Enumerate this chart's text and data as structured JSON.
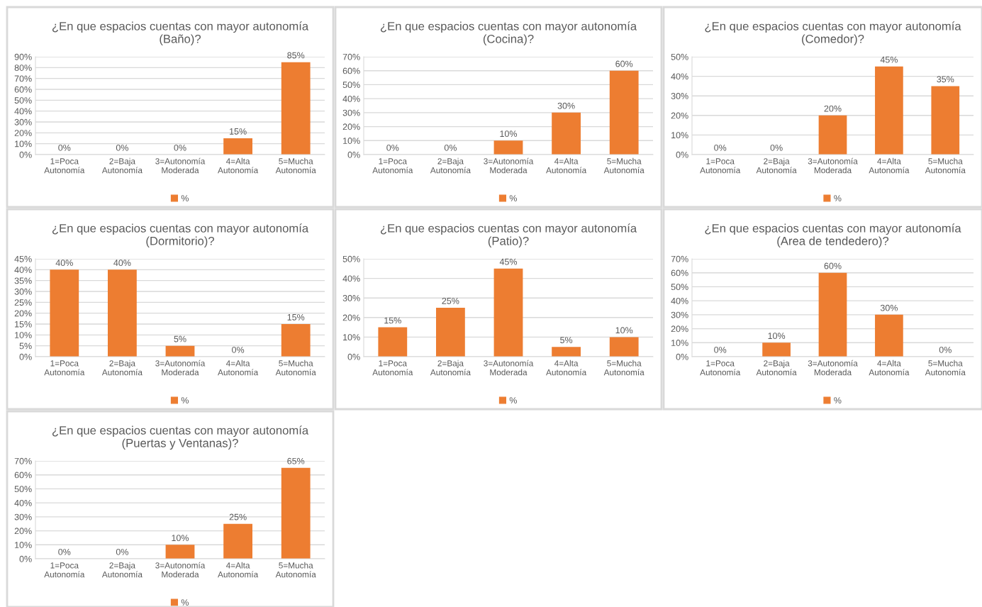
{
  "chart_data": [
    {
      "type": "bar",
      "title": "¿En que espacios cuentas con mayor autonomía\n(Baño)?",
      "categories": [
        "1=Poca\nAutonomía",
        "2=Baja\nAutonomía",
        "3=Autonomía\nModerada",
        "4=Alta\nAutonomía",
        "5=Mucha\nAutonomía"
      ],
      "series": [
        {
          "name": "%",
          "color": "#ed7d31",
          "values": [
            0,
            0,
            0,
            15,
            85
          ],
          "value_labels": [
            "0%",
            "0%",
            "0%",
            "15%",
            "85%"
          ]
        }
      ],
      "ylim": [
        0,
        90
      ],
      "yticks": [
        {
          "value": 0,
          "label": "0%"
        },
        {
          "value": 10,
          "label": "10%"
        },
        {
          "value": 20,
          "label": "20%"
        },
        {
          "value": 30,
          "label": "30%"
        },
        {
          "value": 40,
          "label": "40%"
        },
        {
          "value": 50,
          "label": "50%"
        },
        {
          "value": 60,
          "label": "60%"
        },
        {
          "value": 70,
          "label": "70%"
        },
        {
          "value": 80,
          "label": "80%"
        },
        {
          "value": 90,
          "label": "90%"
        }
      ],
      "grid": "y",
      "legend": "bottom"
    },
    {
      "type": "bar",
      "title": "¿En que espacios cuentas con mayor autonomía\n(Cocina)?",
      "categories": [
        "1=Poca\nAutonomía",
        "2=Baja\nAutonomía",
        "3=Autonomía\nModerada",
        "4=Alta\nAutonomía",
        "5=Mucha\nAutonomía"
      ],
      "series": [
        {
          "name": "%",
          "color": "#ed7d31",
          "values": [
            0,
            0,
            10,
            30,
            60
          ],
          "value_labels": [
            "0%",
            "0%",
            "10%",
            "30%",
            "60%"
          ]
        }
      ],
      "ylim": [
        0,
        70
      ],
      "yticks": [
        {
          "value": 0,
          "label": "0%"
        },
        {
          "value": 10,
          "label": "10%"
        },
        {
          "value": 20,
          "label": "20%"
        },
        {
          "value": 30,
          "label": "30%"
        },
        {
          "value": 40,
          "label": "40%"
        },
        {
          "value": 50,
          "label": "50%"
        },
        {
          "value": 60,
          "label": "60%"
        },
        {
          "value": 70,
          "label": "70%"
        }
      ],
      "grid": "y",
      "legend": "bottom"
    },
    {
      "type": "bar",
      "title": "¿En que espacios cuentas con mayor autonomía\n(Comedor)?",
      "categories": [
        "1=Poca\nAutonomía",
        "2=Baja\nAutonomía",
        "3=Autonomía\nModerada",
        "4=Alta\nAutonomía",
        "5=Mucha\nAutonomía"
      ],
      "series": [
        {
          "name": "%",
          "color": "#ed7d31",
          "values": [
            0,
            0,
            20,
            45,
            35
          ],
          "value_labels": [
            "0%",
            "0%",
            "20%",
            "45%",
            "35%"
          ]
        }
      ],
      "ylim": [
        0,
        50
      ],
      "yticks": [
        {
          "value": 0,
          "label": "0%"
        },
        {
          "value": 10,
          "label": "10%"
        },
        {
          "value": 20,
          "label": "20%"
        },
        {
          "value": 30,
          "label": "30%"
        },
        {
          "value": 40,
          "label": "40%"
        },
        {
          "value": 50,
          "label": "50%"
        }
      ],
      "grid": "y",
      "legend": "bottom"
    },
    {
      "type": "bar",
      "title": "¿En que espacios cuentas con mayor autonomía\n(Dormitorio)?",
      "categories": [
        "1=Poca\nAutonomía",
        "2=Baja\nAutonomía",
        "3=Autonomía\nModerada",
        "4=Alta\nAutonomía",
        "5=Mucha\nAutonomía"
      ],
      "series": [
        {
          "name": "%",
          "color": "#ed7d31",
          "values": [
            40,
            40,
            5,
            0,
            15
          ],
          "value_labels": [
            "40%",
            "40%",
            "5%",
            "0%",
            "15%"
          ]
        }
      ],
      "ylim": [
        0,
        45
      ],
      "yticks": [
        {
          "value": 0,
          "label": "0%"
        },
        {
          "value": 5,
          "label": "5%"
        },
        {
          "value": 10,
          "label": "10%"
        },
        {
          "value": 15,
          "label": "15%"
        },
        {
          "value": 20,
          "label": "20%"
        },
        {
          "value": 25,
          "label": "25%"
        },
        {
          "value": 30,
          "label": "30%"
        },
        {
          "value": 35,
          "label": "35%"
        },
        {
          "value": 40,
          "label": "40%"
        },
        {
          "value": 45,
          "label": "45%"
        }
      ],
      "grid": "y",
      "legend": "bottom"
    },
    {
      "type": "bar",
      "title": "¿En que espacios cuentas con mayor autonomía\n(Patio)?",
      "categories": [
        "1=Poca\nAutonomía",
        "2=Baja\nAutonomía",
        "3=Autonomía\nModerada",
        "4=Alta\nAutonomía",
        "5=Mucha\nAutonomía"
      ],
      "series": [
        {
          "name": "%",
          "color": "#ed7d31",
          "values": [
            15,
            25,
            45,
            5,
            10
          ],
          "value_labels": [
            "15%",
            "25%",
            "45%",
            "5%",
            "10%"
          ]
        }
      ],
      "ylim": [
        0,
        50
      ],
      "yticks": [
        {
          "value": 0,
          "label": "0%"
        },
        {
          "value": 10,
          "label": "10%"
        },
        {
          "value": 20,
          "label": "20%"
        },
        {
          "value": 30,
          "label": "30%"
        },
        {
          "value": 40,
          "label": "40%"
        },
        {
          "value": 50,
          "label": "50%"
        }
      ],
      "grid": "y",
      "legend": "bottom"
    },
    {
      "type": "bar",
      "title": "¿En que espacios cuentas con mayor autonomía\n(Area de tendedero)?",
      "categories": [
        "1=Poca\nAutonomía",
        "2=Baja\nAutonomía",
        "3=Autonomía\nModerada",
        "4=Alta\nAutonomía",
        "5=Mucha\nAutonomía"
      ],
      "series": [
        {
          "name": "%",
          "color": "#ed7d31",
          "values": [
            0,
            10,
            60,
            30,
            0
          ],
          "value_labels": [
            "0%",
            "10%",
            "60%",
            "30%",
            "0%"
          ]
        }
      ],
      "ylim": [
        0,
        70
      ],
      "yticks": [
        {
          "value": 0,
          "label": "0%"
        },
        {
          "value": 10,
          "label": "10%"
        },
        {
          "value": 20,
          "label": "20%"
        },
        {
          "value": 30,
          "label": "30%"
        },
        {
          "value": 40,
          "label": "40%"
        },
        {
          "value": 50,
          "label": "50%"
        },
        {
          "value": 60,
          "label": "60%"
        },
        {
          "value": 70,
          "label": "70%"
        }
      ],
      "grid": "y",
      "legend": "bottom"
    },
    {
      "type": "bar",
      "title": "¿En que espacios cuentas con mayor autonomía\n(Puertas y Ventanas)?",
      "categories": [
        "1=Poca\nAutonomía",
        "2=Baja\nAutonomía",
        "3=Autonomía\nModerada",
        "4=Alta\nAutonomía",
        "5=Mucha\nAutonomía"
      ],
      "series": [
        {
          "name": "%",
          "color": "#ed7d31",
          "values": [
            0,
            0,
            10,
            25,
            65
          ],
          "value_labels": [
            "0%",
            "0%",
            "10%",
            "25%",
            "65%"
          ]
        }
      ],
      "ylim": [
        0,
        70
      ],
      "yticks": [
        {
          "value": 0,
          "label": "0%"
        },
        {
          "value": 10,
          "label": "10%"
        },
        {
          "value": 20,
          "label": "20%"
        },
        {
          "value": 30,
          "label": "30%"
        },
        {
          "value": 40,
          "label": "40%"
        },
        {
          "value": 50,
          "label": "50%"
        },
        {
          "value": 60,
          "label": "60%"
        },
        {
          "value": 70,
          "label": "70%"
        }
      ],
      "grid": "y",
      "legend": "bottom"
    }
  ]
}
